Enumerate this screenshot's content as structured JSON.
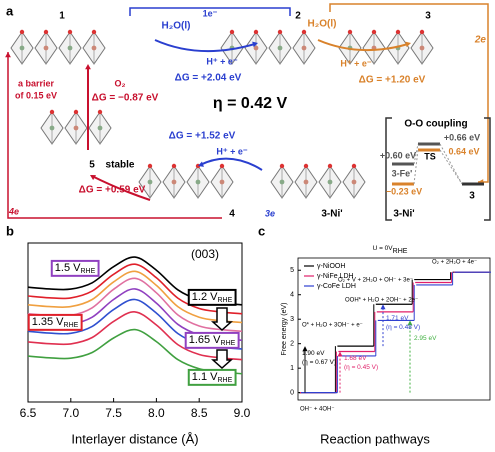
{
  "panel_labels": [
    "b",
    "c"
  ],
  "panel_a": {
    "texts": [
      "a",
      "1",
      "2",
      "3",
      "1e⁻",
      "2e",
      "H₂O(l)",
      "H⁺ + e⁻",
      "ΔG = +2.04 eV",
      "H₂O(l)",
      "H⁺ + e⁻",
      "ΔG = +1.20 eV",
      "η = 0.42 V",
      "a barrier",
      "of 0.15 eV",
      "O₂",
      "ΔG = −0.87 eV",
      "5",
      "stable",
      "ΔG = +1.52 eV",
      "H⁺ + e⁻",
      "ΔG = +0.59 eV",
      "4",
      "3e",
      "3-Ni'",
      "4e",
      "O-O coupling",
      "+0.66 eV",
      "+0.60 eV",
      "TS",
      "0.64 eV",
      "3-Fe'",
      "−0.23 eV",
      "3",
      "3-Ni'"
    ]
  },
  "chart_data": [
    {
      "type": "line",
      "x": [
        6.5,
        6.75,
        7.0,
        7.25,
        7.5,
        7.75,
        8.0,
        8.25,
        8.5,
        8.75,
        9.0
      ],
      "xlim": [
        6.5,
        9.0
      ],
      "xticks": [
        6.5,
        {
          "value": 7,
          "label": "7.0"
        },
        7.5,
        {
          "value": 8,
          "label": "8.0"
        },
        8.5,
        {
          "value": 9,
          "label": "9.0"
        }
      ],
      "ylim": [
        0,
        9
      ],
      "xlabel": "Interlayer distance (Å)",
      "series": [
        {
          "color": "#000000",
          "values": [
            6.5,
            6.4,
            6.39,
            6.75,
            7.66,
            8.2,
            7.46,
            6.35,
            5.79,
            5.6,
            5.5
          ]
        },
        {
          "color": "#e0202a",
          "values": [
            6.0,
            5.9,
            5.89,
            6.28,
            7.23,
            7.8,
            7.03,
            5.88,
            5.29,
            5.1,
            5.0
          ]
        },
        {
          "color": "#f0a040",
          "values": [
            5.5,
            5.4,
            5.4,
            5.8,
            6.8,
            7.4,
            6.6,
            5.4,
            4.8,
            4.6,
            4.5
          ]
        },
        {
          "color": "#e070a0",
          "values": [
            5.0,
            4.9,
            4.9,
            5.33,
            6.38,
            7.0,
            6.18,
            4.93,
            4.3,
            4.1,
            4.0
          ]
        },
        {
          "color": "#9040c0",
          "values": [
            4.5,
            4.4,
            4.4,
            4.8,
            5.8,
            6.4,
            5.6,
            4.4,
            3.8,
            3.6,
            3.5
          ]
        },
        {
          "color": "#3050d0",
          "values": [
            4.0,
            3.9,
            3.89,
            4.28,
            5.23,
            5.8,
            5.03,
            3.88,
            3.29,
            3.1,
            3.0
          ]
        },
        {
          "color": "#e03050",
          "values": [
            3.4,
            3.3,
            3.29,
            3.65,
            4.56,
            5.1,
            4.36,
            3.25,
            2.69,
            2.5,
            2.4
          ]
        },
        {
          "color": "#40a040",
          "values": [
            2.6,
            2.5,
            2.48,
            2.8,
            3.62,
            4.1,
            3.42,
            2.4,
            1.88,
            1.7,
            1.6
          ]
        }
      ],
      "annotations": [
        {
          "text": "(003)"
        },
        {
          "text": "1.5 V",
          "sub": "RHE"
        },
        {
          "text": "1.35 V",
          "sub": "RHE"
        },
        {
          "text": "1.2 V",
          "sub": "RHE"
        },
        {
          "text": "1.65 V",
          "sub": "RHE"
        },
        {
          "text": "1.1 V",
          "sub": "RHE"
        }
      ]
    },
    {
      "type": "step",
      "categories": [
        "OH⁻ + 4OH⁻",
        "O* + H₂O + 3OH⁻ + e⁻",
        "OOH* + H₂O + 2OH⁻ + 2e⁻",
        "O₂ + V + 2H₂O + OH⁻ + 3e⁻",
        "O₂ + 2H₂O + 4e⁻"
      ],
      "ylim": [
        -0.3,
        5.5
      ],
      "yticks": [
        0,
        1,
        2,
        3,
        4,
        5
      ],
      "ylabel": "Free energy (eV)",
      "xlabel": "Reaction pathways",
      "series": [
        {
          "name": "γ-NiOOH",
          "color": "#000000",
          "values": [
            0,
            1.9,
            3.61,
            4.62,
            4.92
          ]
        },
        {
          "name": "γ-NiFe LDH",
          "color": "#e0206a",
          "values": [
            0,
            1.68,
            3.3,
            4.5,
            4.92
          ]
        },
        {
          "name": "γ-CoFe LDH",
          "color": "#3040d0",
          "values": [
            0,
            1.5,
            2.95,
            4.4,
            4.92
          ]
        }
      ],
      "annotations": [
        {
          "text": "U = 0V",
          "sub": "RHE"
        },
        {
          "text": "1.90 eV"
        },
        {
          "text": "(η = 0.67 V)"
        },
        {
          "text": "1.68 eV"
        },
        {
          "text": "(η = 0.45 V)"
        },
        {
          "text": "1.71 eV"
        },
        {
          "text": "(η = 0.48 V)"
        },
        {
          "text": "2.95 eV"
        }
      ]
    }
  ]
}
